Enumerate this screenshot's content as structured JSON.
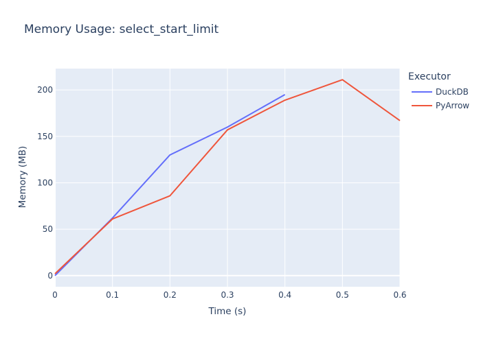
{
  "colors": {
    "plot_bg": "#e5ecf6",
    "grid": "#ffffff",
    "text": "#2a3f5f"
  },
  "chart_data": {
    "type": "line",
    "title": "Memory Usage: select_start_limit",
    "xlabel": "Time (s)",
    "ylabel": "Memory (MB)",
    "xlim": [
      0,
      0.6
    ],
    "ylim": [
      -12,
      223
    ],
    "x_ticks": [
      0,
      0.1,
      0.2,
      0.3,
      0.4,
      0.5,
      0.6
    ],
    "x_tick_labels": [
      "0",
      "0.1",
      "0.2",
      "0.3",
      "0.4",
      "0.5",
      "0.6"
    ],
    "y_ticks": [
      0,
      50,
      100,
      150,
      200
    ],
    "y_tick_labels": [
      "0",
      "50",
      "100",
      "150",
      "200"
    ],
    "grid": true,
    "legend": {
      "title": "Executor",
      "placement": "right"
    },
    "series": [
      {
        "name": "DuckDB",
        "color": "#636efa",
        "x": [
          0,
          0.1,
          0.2,
          0.3,
          0.4
        ],
        "y": [
          0,
          62,
          130,
          160,
          195
        ]
      },
      {
        "name": "PyArrow",
        "color": "#ef553b",
        "x": [
          0,
          0.1,
          0.2,
          0.3,
          0.4,
          0.5,
          0.6
        ],
        "y": [
          2,
          61,
          86,
          157,
          189,
          211,
          167
        ]
      }
    ]
  }
}
